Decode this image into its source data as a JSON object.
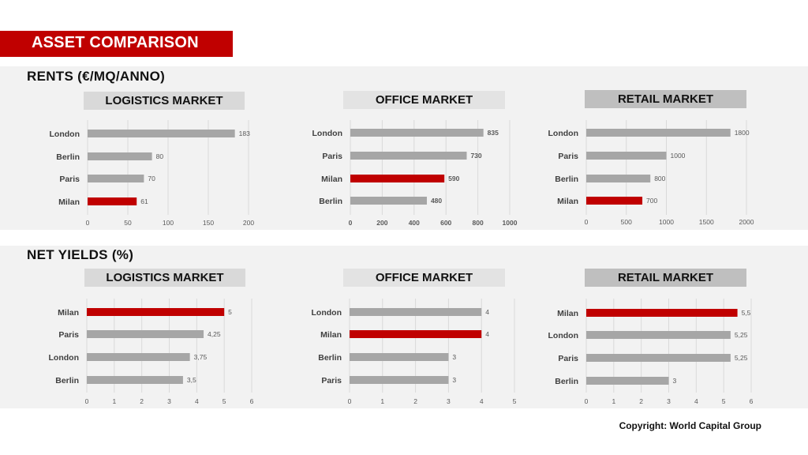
{
  "title": "ASSET COMPARISON",
  "sections": [
    {
      "title": "RENTS (€/MQ/ANNO)"
    },
    {
      "title": "NET  YIELDS (%)"
    }
  ],
  "colors": {
    "accent": "#c00000",
    "bar": "#a6a6a6",
    "panel": "#f2f2f2"
  },
  "copyright": "Copyright: World Capital Group",
  "chart_data": [
    {
      "type": "bar",
      "orientation": "horizontal",
      "title": "LOGISTICS MARKET",
      "categories": [
        "London",
        "Berlin",
        "Paris",
        "Milan"
      ],
      "values": [
        183,
        80,
        70,
        61
      ],
      "value_labels": [
        "183",
        "80",
        "70",
        "61"
      ],
      "highlight": "Milan",
      "xlim": [
        0,
        200
      ],
      "ticks": [
        0,
        50,
        100,
        150,
        200
      ],
      "tick_labels": [
        "0",
        "50",
        "100",
        "150",
        "200"
      ],
      "header_color": "#d9d9d9",
      "bold_labels": false
    },
    {
      "type": "bar",
      "orientation": "horizontal",
      "title": "OFFICE MARKET",
      "categories": [
        "London",
        "Paris",
        "Milan",
        "Berlin"
      ],
      "values": [
        835,
        730,
        590,
        480
      ],
      "value_labels": [
        "835",
        "730",
        "590",
        "480"
      ],
      "highlight": "Milan",
      "xlim": [
        0,
        1000
      ],
      "ticks": [
        0,
        200,
        400,
        600,
        800,
        1000
      ],
      "tick_labels": [
        "0",
        "200",
        "400",
        "600",
        "800",
        "1000"
      ],
      "header_color": "#e3e3e3",
      "bold_labels": true
    },
    {
      "type": "bar",
      "orientation": "horizontal",
      "title": "RETAIL MARKET",
      "categories": [
        "London",
        "Paris",
        "Berlin",
        "Milan"
      ],
      "values": [
        1800,
        1000,
        800,
        700
      ],
      "value_labels": [
        "1800",
        "1000",
        "800",
        "700"
      ],
      "highlight": "Milan",
      "xlim": [
        0,
        2000
      ],
      "ticks": [
        0,
        500,
        1000,
        1500,
        2000
      ],
      "tick_labels": [
        "0",
        "500",
        "1000",
        "1500",
        "2000"
      ],
      "header_color": "#bfbfbf",
      "bold_labels": false
    },
    {
      "type": "bar",
      "orientation": "horizontal",
      "title": "LOGISTICS MARKET",
      "categories": [
        "Milan",
        "Paris",
        "London",
        "Berlin"
      ],
      "values": [
        5,
        4.25,
        3.75,
        3.5
      ],
      "value_labels": [
        "5",
        "4,25",
        "3,75",
        "3,5"
      ],
      "highlight": "Milan",
      "xlim": [
        0,
        6
      ],
      "ticks": [
        0,
        1,
        2,
        3,
        4,
        5,
        6
      ],
      "tick_labels": [
        "0",
        "1",
        "2",
        "3",
        "4",
        "5",
        "6"
      ],
      "header_color": "#d9d9d9",
      "bold_labels": false
    },
    {
      "type": "bar",
      "orientation": "horizontal",
      "title": "OFFICE MARKET",
      "categories": [
        "London",
        "Milan",
        "Berlin",
        "Paris"
      ],
      "values": [
        4,
        4,
        3,
        3
      ],
      "value_labels": [
        "4",
        "4",
        "3",
        "3"
      ],
      "highlight": "Milan",
      "xlim": [
        0,
        5
      ],
      "ticks": [
        0,
        1,
        2,
        3,
        4,
        5
      ],
      "tick_labels": [
        "0",
        "1",
        "2",
        "3",
        "4",
        "5"
      ],
      "header_color": "#e3e3e3",
      "bold_labels": false
    },
    {
      "type": "bar",
      "orientation": "horizontal",
      "title": "RETAIL MARKET",
      "categories": [
        "Milan",
        "London",
        "Paris",
        "Berlin"
      ],
      "values": [
        5.5,
        5.25,
        5.25,
        3
      ],
      "value_labels": [
        "5,5",
        "5,25",
        "5,25",
        "3"
      ],
      "highlight": "Milan",
      "xlim": [
        0,
        6
      ],
      "ticks": [
        0,
        1,
        2,
        3,
        4,
        5,
        6
      ],
      "tick_labels": [
        "0",
        "1",
        "2",
        "3",
        "4",
        "5",
        "6"
      ],
      "header_color": "#bfbfbf",
      "bold_labels": false
    }
  ]
}
